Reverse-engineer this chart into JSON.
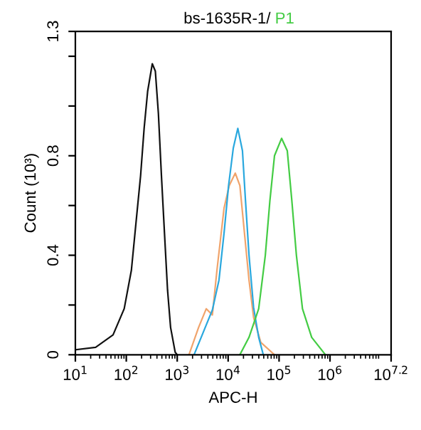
{
  "chart_data": {
    "type": "line",
    "title": "bs-1635R-1/",
    "xlabel": "APC-H",
    "ylabel": "Count (10³)",
    "log": "x",
    "xlim": [
      10,
      15848932
    ],
    "ylim": [
      0,
      1.3
    ],
    "xticks": [
      {
        "value": 10,
        "label": "10$^{1}$"
      },
      {
        "value": 100,
        "label": "10$^{2}$"
      },
      {
        "value": 1000,
        "label": "10$^{3}$"
      },
      {
        "value": 10000,
        "label": "10$^{4}$"
      },
      {
        "value": 100000,
        "label": "10$^{5}$"
      },
      {
        "value": 1000000,
        "label": "10$^{6}$"
      },
      {
        "value": 15848932,
        "label": "10$^{7.2}$"
      }
    ],
    "yticks": [
      0,
      {
        "value": 0.2,
        "label": null
      },
      0.4,
      {
        "value": 0.6,
        "label": null
      },
      0.8,
      {
        "value": 1.0,
        "label": null
      },
      {
        "value": 1.2,
        "label": null
      },
      1.3
    ],
    "grid": false,
    "legend": false,
    "marker": "none",
    "line_style": "solid",
    "series": [
      {
        "color": "#111111",
        "x": [
          10,
          25,
          55,
          91,
          126,
          155,
          191,
          224,
          263,
          324,
          372,
          427,
          490,
          562,
          646,
          741,
          912,
          1000
        ],
        "values": [
          0.02,
          0.03,
          0.08,
          0.185,
          0.34,
          0.53,
          0.72,
          0.91,
          1.06,
          1.17,
          1.14,
          0.97,
          0.72,
          0.49,
          0.26,
          0.11,
          0.01,
          0
        ]
      },
      {
        "color": "#f0a46c",
        "x": [
          1700,
          2630,
          3720,
          4900,
          6030,
          8320,
          10500,
          13800,
          17000,
          20900,
          25700,
          31600,
          43700,
          81300
        ],
        "values": [
          0,
          0.11,
          0.185,
          0.16,
          0.34,
          0.59,
          0.68,
          0.73,
          0.68,
          0.49,
          0.3,
          0.15,
          0.05,
          0
        ]
      },
      {
        "color": "#2aa8de",
        "x": [
          2140,
          3240,
          4900,
          6610,
          8320,
          10200,
          12600,
          15500,
          19100,
          21900,
          25700,
          31600,
          39800,
          49000
        ],
        "values": [
          0,
          0.09,
          0.18,
          0.3,
          0.49,
          0.68,
          0.83,
          0.91,
          0.82,
          0.62,
          0.4,
          0.19,
          0.07,
          0
        ]
      },
      {
        "name": "P1",
        "color": "#44cc44",
        "x": [
          17000,
          25700,
          39800,
          53700,
          66100,
          81300,
          112000,
          145000,
          178000,
          219000,
          288000,
          437000,
          813000
        ],
        "values": [
          0,
          0.07,
          0.185,
          0.4,
          0.62,
          0.8,
          0.87,
          0.82,
          0.62,
          0.4,
          0.185,
          0.07,
          0
        ]
      }
    ]
  }
}
